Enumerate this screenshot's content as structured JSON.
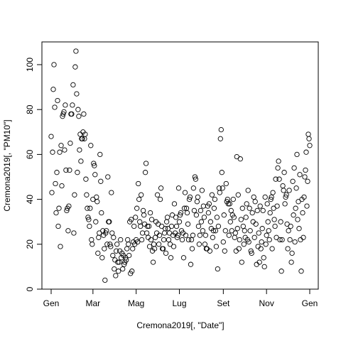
{
  "chart_data": {
    "type": "scatter",
    "title": "",
    "xlabel": "Cremona2019[, \"Date\"]",
    "ylabel": "Cremona2019[, \"PM10\"]",
    "xlim": [
      -6,
      370
    ],
    "ylim": [
      0,
      110
    ],
    "x_ticks": [
      {
        "value": 0,
        "label": "Gen"
      },
      {
        "value": 59,
        "label": "Mar"
      },
      {
        "value": 120,
        "label": "Mag"
      },
      {
        "value": 181,
        "label": "Lug"
      },
      {
        "value": 243,
        "label": "Set"
      },
      {
        "value": 304,
        "label": "Nov"
      },
      {
        "value": 365,
        "label": "Gen"
      }
    ],
    "y_ticks": [
      0,
      20,
      40,
      60,
      80,
      100
    ],
    "point_style": "open-circle",
    "points": [
      [
        0,
        68
      ],
      [
        1,
        43
      ],
      [
        2,
        61
      ],
      [
        3,
        89
      ],
      [
        4,
        100
      ],
      [
        5,
        81
      ],
      [
        6,
        47
      ],
      [
        7,
        34
      ],
      [
        8,
        52
      ],
      [
        9,
        84
      ],
      [
        10,
        28
      ],
      [
        11,
        36
      ],
      [
        12,
        61
      ],
      [
        13,
        19
      ],
      [
        14,
        64
      ],
      [
        15,
        46
      ],
      [
        16,
        77
      ],
      [
        17,
        78
      ],
      [
        18,
        79
      ],
      [
        19,
        62
      ],
      [
        20,
        82
      ],
      [
        21,
        53
      ],
      [
        22,
        35
      ],
      [
        23,
        36
      ],
      [
        24,
        26
      ],
      [
        25,
        37
      ],
      [
        26,
        53
      ],
      [
        27,
        65
      ],
      [
        28,
        78
      ],
      [
        29,
        78
      ],
      [
        30,
        82
      ],
      [
        31,
        91
      ],
      [
        32,
        25
      ],
      [
        33,
        42
      ],
      [
        34,
        99
      ],
      [
        35,
        106
      ],
      [
        36,
        87
      ],
      [
        37,
        52
      ],
      [
        38,
        80
      ],
      [
        39,
        77
      ],
      [
        40,
        62
      ],
      [
        41,
        69
      ],
      [
        42,
        57
      ],
      [
        43,
        67
      ],
      [
        44,
        67
      ],
      [
        45,
        70
      ],
      [
        46,
        78
      ],
      [
        47,
        67
      ],
      [
        48,
        69
      ],
      [
        49,
        49
      ],
      [
        50,
        42
      ],
      [
        51,
        36
      ],
      [
        52,
        32
      ],
      [
        53,
        31
      ],
      [
        54,
        28
      ],
      [
        55,
        36
      ],
      [
        56,
        64
      ],
      [
        57,
        22
      ],
      [
        58,
        20
      ],
      [
        59,
        40
      ],
      [
        60,
        56
      ],
      [
        61,
        55
      ],
      [
        62,
        51
      ],
      [
        63,
        30
      ],
      [
        64,
        41
      ],
      [
        65,
        39
      ],
      [
        66,
        16
      ],
      [
        67,
        23
      ],
      [
        68,
        25
      ],
      [
        69,
        60
      ],
      [
        70,
        48
      ],
      [
        71,
        34
      ],
      [
        72,
        14
      ],
      [
        73,
        26
      ],
      [
        74,
        24
      ],
      [
        75,
        18
      ],
      [
        76,
        4
      ],
      [
        77,
        25
      ],
      [
        78,
        26
      ],
      [
        79,
        20
      ],
      [
        80,
        50
      ],
      [
        81,
        30
      ],
      [
        82,
        30
      ],
      [
        83,
        20
      ],
      [
        84,
        19
      ],
      [
        85,
        43
      ],
      [
        86,
        25
      ],
      [
        87,
        15
      ],
      [
        88,
        23
      ],
      [
        89,
        9
      ],
      [
        90,
        13
      ],
      [
        91,
        6
      ],
      [
        92,
        17
      ],
      [
        93,
        20
      ],
      [
        94,
        12
      ],
      [
        95,
        8
      ],
      [
        96,
        12
      ],
      [
        97,
        17
      ],
      [
        98,
        22
      ],
      [
        99,
        14
      ],
      [
        100,
        16
      ],
      [
        101,
        9
      ],
      [
        102,
        15
      ],
      [
        103,
        11
      ],
      [
        104,
        12
      ],
      [
        105,
        14
      ],
      [
        106,
        13
      ],
      [
        107,
        18
      ],
      [
        108,
        22
      ],
      [
        109,
        20
      ],
      [
        110,
        15
      ],
      [
        111,
        30
      ],
      [
        112,
        7
      ],
      [
        113,
        31
      ],
      [
        114,
        8
      ],
      [
        115,
        18
      ],
      [
        116,
        21
      ],
      [
        117,
        28
      ],
      [
        118,
        20
      ],
      [
        119,
        32
      ],
      [
        120,
        22
      ],
      [
        121,
        36
      ],
      [
        122,
        21
      ],
      [
        123,
        47
      ],
      [
        124,
        40
      ],
      [
        125,
        30
      ],
      [
        126,
        28
      ],
      [
        127,
        42
      ],
      [
        128,
        22
      ],
      [
        129,
        25
      ],
      [
        130,
        35
      ],
      [
        131,
        33
      ],
      [
        132,
        29
      ],
      [
        133,
        52
      ],
      [
        134,
        56
      ],
      [
        135,
        25
      ],
      [
        136,
        28
      ],
      [
        137,
        23
      ],
      [
        138,
        28
      ],
      [
        139,
        19
      ],
      [
        140,
        34
      ],
      [
        141,
        22
      ],
      [
        142,
        31
      ],
      [
        143,
        17
      ],
      [
        144,
        12
      ],
      [
        145,
        20
      ],
      [
        146,
        18
      ],
      [
        147,
        23
      ],
      [
        148,
        30
      ],
      [
        149,
        25
      ],
      [
        150,
        42
      ],
      [
        151,
        29
      ],
      [
        152,
        20
      ],
      [
        153,
        24
      ],
      [
        154,
        40
      ],
      [
        155,
        45
      ],
      [
        156,
        28
      ],
      [
        157,
        18
      ],
      [
        158,
        18
      ],
      [
        159,
        22
      ],
      [
        160,
        25
      ],
      [
        161,
        27
      ],
      [
        162,
        16
      ],
      [
        163,
        30
      ],
      [
        164,
        32
      ],
      [
        165,
        27
      ],
      [
        166,
        22
      ],
      [
        167,
        25
      ],
      [
        168,
        20
      ],
      [
        169,
        14
      ],
      [
        170,
        28
      ],
      [
        171,
        33
      ],
      [
        172,
        24
      ],
      [
        173,
        19
      ],
      [
        174,
        38
      ],
      [
        175,
        25
      ],
      [
        176,
        32
      ],
      [
        177,
        28
      ],
      [
        178,
        23
      ],
      [
        179,
        24
      ],
      [
        180,
        45
      ],
      [
        181,
        30
      ],
      [
        182,
        33
      ],
      [
        183,
        34
      ],
      [
        184,
        26
      ],
      [
        185,
        22
      ],
      [
        186,
        25
      ],
      [
        187,
        14
      ],
      [
        188,
        36
      ],
      [
        189,
        43
      ],
      [
        190,
        24
      ],
      [
        191,
        36
      ],
      [
        192,
        34
      ],
      [
        193,
        29
      ],
      [
        194,
        22
      ],
      [
        195,
        40
      ],
      [
        196,
        41
      ],
      [
        197,
        11
      ],
      [
        198,
        22
      ],
      [
        199,
        18
      ],
      [
        200,
        24
      ],
      [
        201,
        45
      ],
      [
        202,
        35
      ],
      [
        203,
        50
      ],
      [
        204,
        49
      ],
      [
        205,
        33
      ],
      [
        206,
        39
      ],
      [
        207,
        41
      ],
      [
        208,
        28
      ],
      [
        209,
        20
      ],
      [
        210,
        24
      ],
      [
        211,
        35
      ],
      [
        212,
        30
      ],
      [
        213,
        44
      ],
      [
        214,
        26
      ],
      [
        215,
        37
      ],
      [
        216,
        32
      ],
      [
        217,
        20
      ],
      [
        218,
        24
      ],
      [
        219,
        18
      ],
      [
        220,
        18
      ],
      [
        221,
        37
      ],
      [
        222,
        34
      ],
      [
        223,
        38
      ],
      [
        224,
        17
      ],
      [
        225,
        30
      ],
      [
        226,
        27
      ],
      [
        227,
        42
      ],
      [
        228,
        23
      ],
      [
        229,
        26
      ],
      [
        230,
        36
      ],
      [
        231,
        40
      ],
      [
        232,
        26
      ],
      [
        233,
        19
      ],
      [
        234,
        32
      ],
      [
        235,
        9
      ],
      [
        236,
        28
      ],
      [
        237,
        45
      ],
      [
        238,
        43
      ],
      [
        239,
        67
      ],
      [
        240,
        71
      ],
      [
        241,
        52
      ],
      [
        242,
        45
      ],
      [
        243,
        21
      ],
      [
        244,
        33
      ],
      [
        245,
        17
      ],
      [
        246,
        26
      ],
      [
        247,
        47
      ],
      [
        248,
        39
      ],
      [
        249,
        40
      ],
      [
        250,
        38
      ],
      [
        251,
        24
      ],
      [
        252,
        38
      ],
      [
        253,
        30
      ],
      [
        254,
        35
      ],
      [
        255,
        26
      ],
      [
        256,
        33
      ],
      [
        257,
        40
      ],
      [
        258,
        32
      ],
      [
        259,
        23
      ],
      [
        260,
        25
      ],
      [
        261,
        17
      ],
      [
        262,
        59
      ],
      [
        263,
        27
      ],
      [
        264,
        42
      ],
      [
        265,
        18
      ],
      [
        266,
        22
      ],
      [
        267,
        58
      ],
      [
        268,
        31
      ],
      [
        269,
        12
      ],
      [
        270,
        36
      ],
      [
        271,
        28
      ],
      [
        272,
        20
      ],
      [
        273,
        26
      ],
      [
        274,
        23
      ],
      [
        275,
        32
      ],
      [
        276,
        38
      ],
      [
        277,
        22
      ],
      [
        278,
        44
      ],
      [
        279,
        21
      ],
      [
        280,
        36
      ],
      [
        281,
        26
      ],
      [
        282,
        17
      ],
      [
        283,
        16
      ],
      [
        284,
        34
      ],
      [
        285,
        30
      ],
      [
        286,
        41
      ],
      [
        287,
        23
      ],
      [
        288,
        39
      ],
      [
        289,
        29
      ],
      [
        290,
        11
      ],
      [
        291,
        35
      ],
      [
        292,
        19
      ],
      [
        293,
        25
      ],
      [
        294,
        12
      ],
      [
        295,
        37
      ],
      [
        296,
        18
      ],
      [
        297,
        21
      ],
      [
        298,
        27
      ],
      [
        299,
        35
      ],
      [
        300,
        14
      ],
      [
        301,
        10
      ],
      [
        302,
        41
      ],
      [
        303,
        20
      ],
      [
        304,
        24
      ],
      [
        305,
        38
      ],
      [
        306,
        30
      ],
      [
        307,
        26
      ],
      [
        308,
        22
      ],
      [
        309,
        34
      ],
      [
        310,
        40
      ],
      [
        311,
        41
      ],
      [
        312,
        18
      ],
      [
        313,
        43
      ],
      [
        314,
        36
      ],
      [
        315,
        31
      ],
      [
        316,
        28
      ],
      [
        317,
        49
      ],
      [
        318,
        23
      ],
      [
        319,
        37
      ],
      [
        320,
        54
      ],
      [
        321,
        57
      ],
      [
        322,
        49
      ],
      [
        323,
        22
      ],
      [
        324,
        30
      ],
      [
        325,
        8
      ],
      [
        326,
        22
      ],
      [
        327,
        46
      ],
      [
        328,
        44
      ],
      [
        329,
        52
      ],
      [
        330,
        38
      ],
      [
        331,
        41
      ],
      [
        332,
        42
      ],
      [
        333,
        29
      ],
      [
        334,
        18
      ],
      [
        335,
        26
      ],
      [
        336,
        44
      ],
      [
        337,
        22
      ],
      [
        338,
        28
      ],
      [
        339,
        12
      ],
      [
        340,
        16
      ],
      [
        341,
        48
      ],
      [
        342,
        33
      ],
      [
        343,
        54
      ],
      [
        344,
        21
      ],
      [
        345,
        36
      ],
      [
        346,
        45
      ],
      [
        347,
        60
      ],
      [
        348,
        31
      ],
      [
        349,
        39
      ],
      [
        350,
        27
      ],
      [
        351,
        51
      ],
      [
        352,
        22
      ],
      [
        353,
        8
      ],
      [
        354,
        40
      ],
      [
        355,
        34
      ],
      [
        356,
        23
      ],
      [
        357,
        41
      ],
      [
        358,
        50
      ],
      [
        359,
        53
      ],
      [
        360,
        61
      ],
      [
        361,
        37
      ],
      [
        362,
        48
      ],
      [
        363,
        69
      ],
      [
        364,
        67
      ],
      [
        365,
        64
      ]
    ]
  }
}
